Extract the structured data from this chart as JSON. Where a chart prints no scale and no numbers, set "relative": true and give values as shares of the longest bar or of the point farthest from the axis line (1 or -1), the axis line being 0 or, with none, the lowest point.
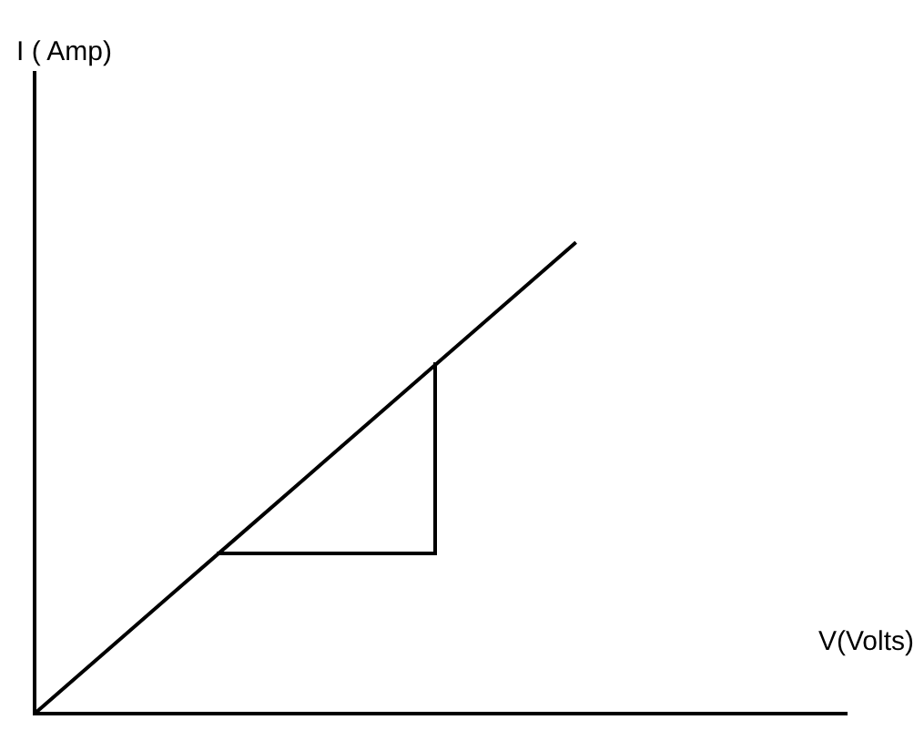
{
  "chart_data": {
    "type": "line",
    "xlabel": "V(Volts)",
    "annotations": [
      "I ( Amp)"
    ],
    "relative": true,
    "categories": [
      null,
      null,
      null,
      null,
      null,
      null,
      null
    ],
    "series": [
      {
        "color": "#000000",
        "values": [
          0,
          0.25,
          0.5,
          0.75,
          1,
          null,
          null
        ]
      }
    ],
    "grid": false,
    "legend": false,
    "marker": "none",
    "line_style": "solid"
  }
}
